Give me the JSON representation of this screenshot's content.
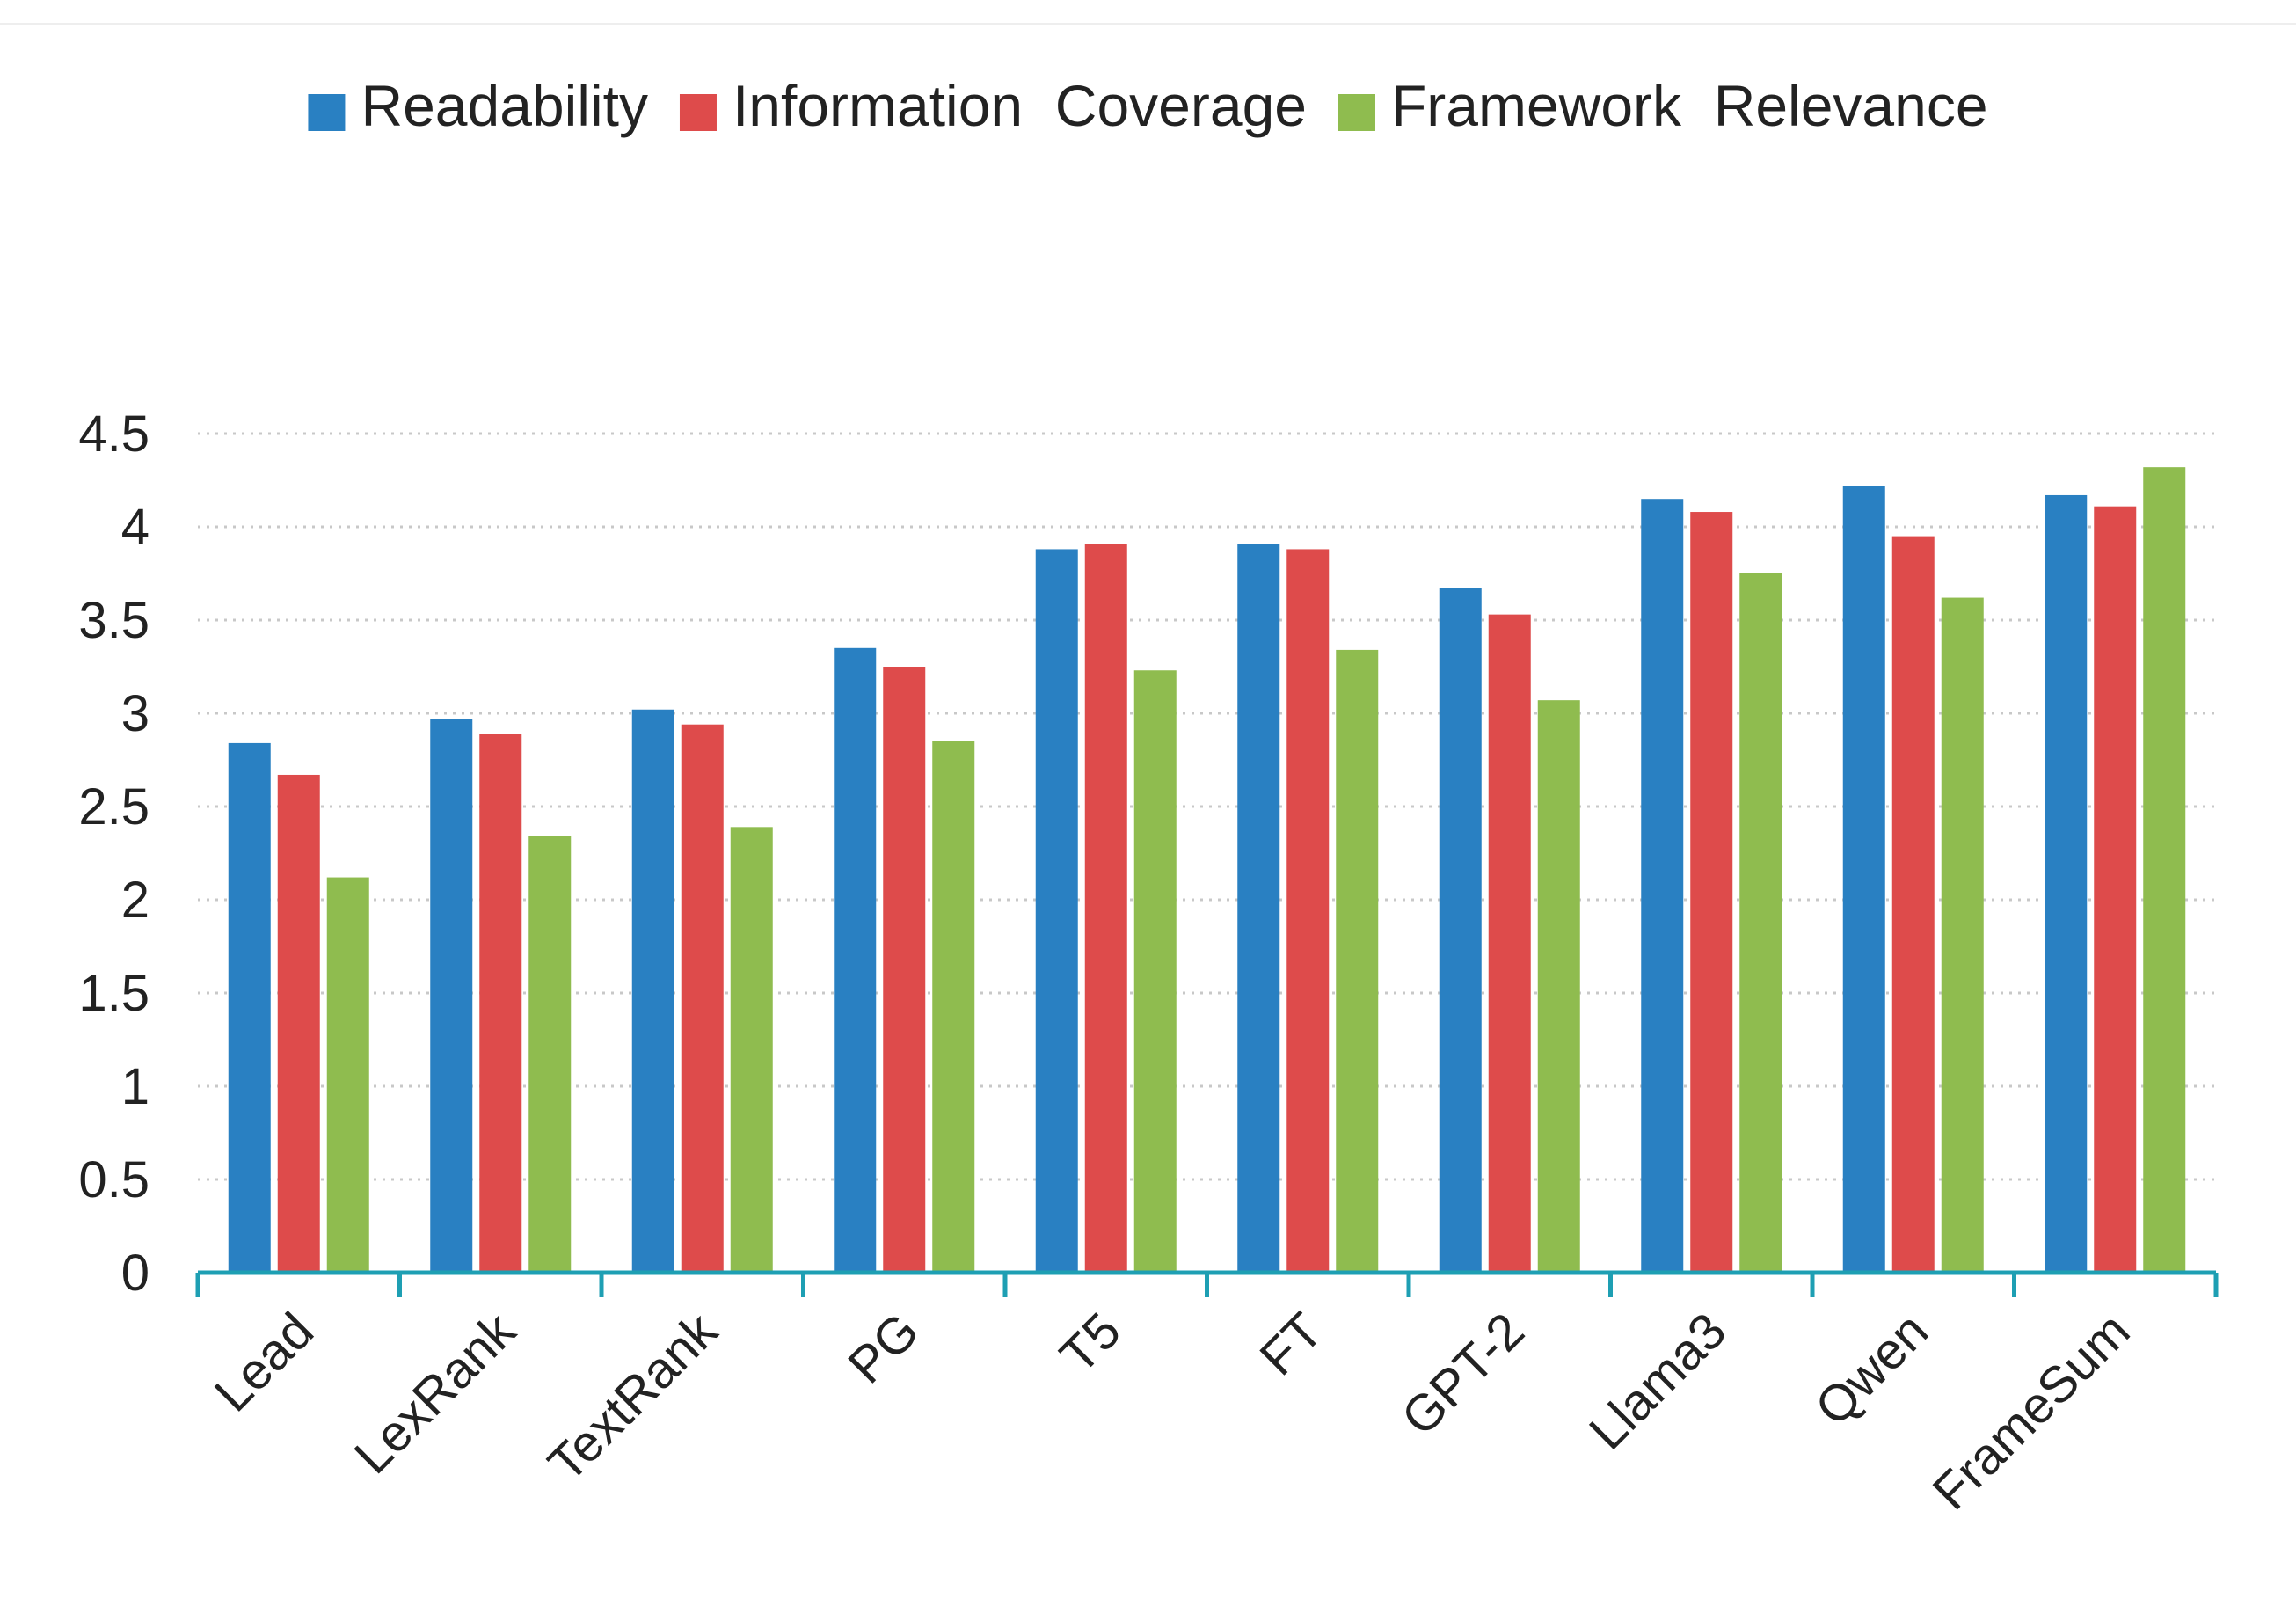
{
  "chart_data": {
    "type": "bar",
    "title": "",
    "xlabel": "",
    "ylabel": "",
    "ylim": [
      0,
      4.5
    ],
    "yticks": [
      "0",
      "0.5",
      "1",
      "1.5",
      "2",
      "2.5",
      "3",
      "3.5",
      "4",
      "4.5"
    ],
    "grid": "horizontal dotted",
    "legend_position": "top-center",
    "categories": [
      "Lead",
      "LexRank",
      "TextRank",
      "PG",
      "T5",
      "FT",
      "GPT-2",
      "Llama3",
      "Qwen",
      "FrameSum"
    ],
    "series": [
      {
        "name": "Readability",
        "color": "#2980c2",
        "values": [
          2.84,
          2.97,
          3.02,
          3.35,
          3.88,
          3.91,
          3.67,
          4.15,
          4.22,
          4.17
        ]
      },
      {
        "name": "Information  Coverage",
        "color": "#de4b4b",
        "values": [
          2.67,
          2.89,
          2.94,
          3.25,
          3.91,
          3.88,
          3.53,
          4.08,
          3.95,
          4.11
        ]
      },
      {
        "name": "Framework  Relevance",
        "color": "#8fbc4f",
        "values": [
          2.12,
          2.34,
          2.39,
          2.85,
          3.23,
          3.34,
          3.07,
          3.75,
          3.62,
          4.32
        ]
      }
    ],
    "axis_color": "#1e9fb3",
    "grid_color": "#c8c8c8"
  }
}
